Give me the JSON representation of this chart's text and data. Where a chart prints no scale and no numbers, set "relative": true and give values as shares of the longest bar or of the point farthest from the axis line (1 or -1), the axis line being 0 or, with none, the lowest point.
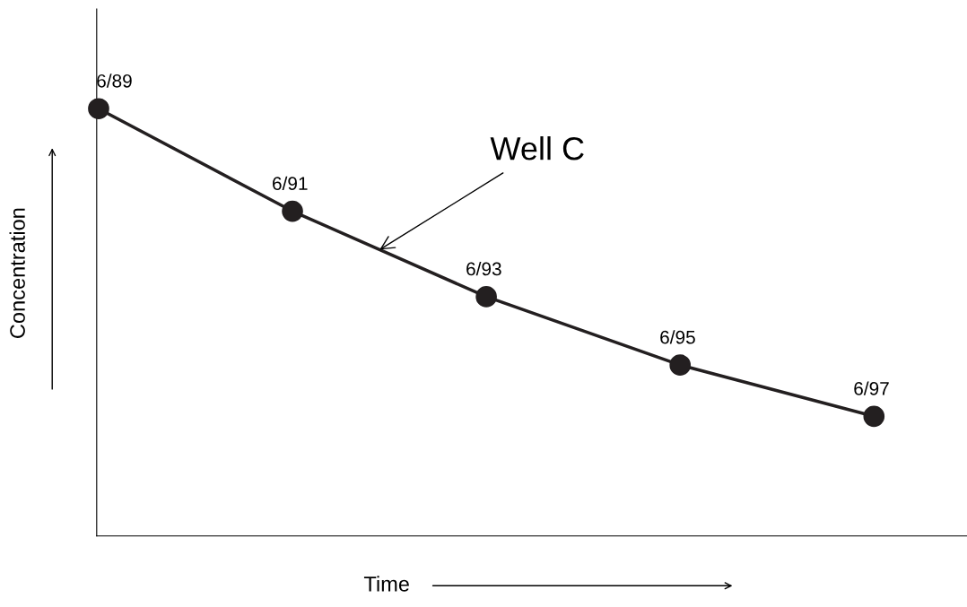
{
  "chart_data": {
    "type": "line",
    "relative": true,
    "categories": [
      "6/89",
      "6/91",
      "6/93",
      "6/95",
      "6/97"
    ],
    "series": [
      {
        "color": "#231f20",
        "values": [
          1,
          0.76,
          0.56,
          0.4,
          0.28
        ]
      }
    ],
    "xlabel": "Time",
    "ylabel": "Concentration",
    "annotations": [
      "Well C"
    ],
    "marker": "circle",
    "line_style": "solid",
    "grid": false,
    "legend": false,
    "tick_labels": false
  }
}
